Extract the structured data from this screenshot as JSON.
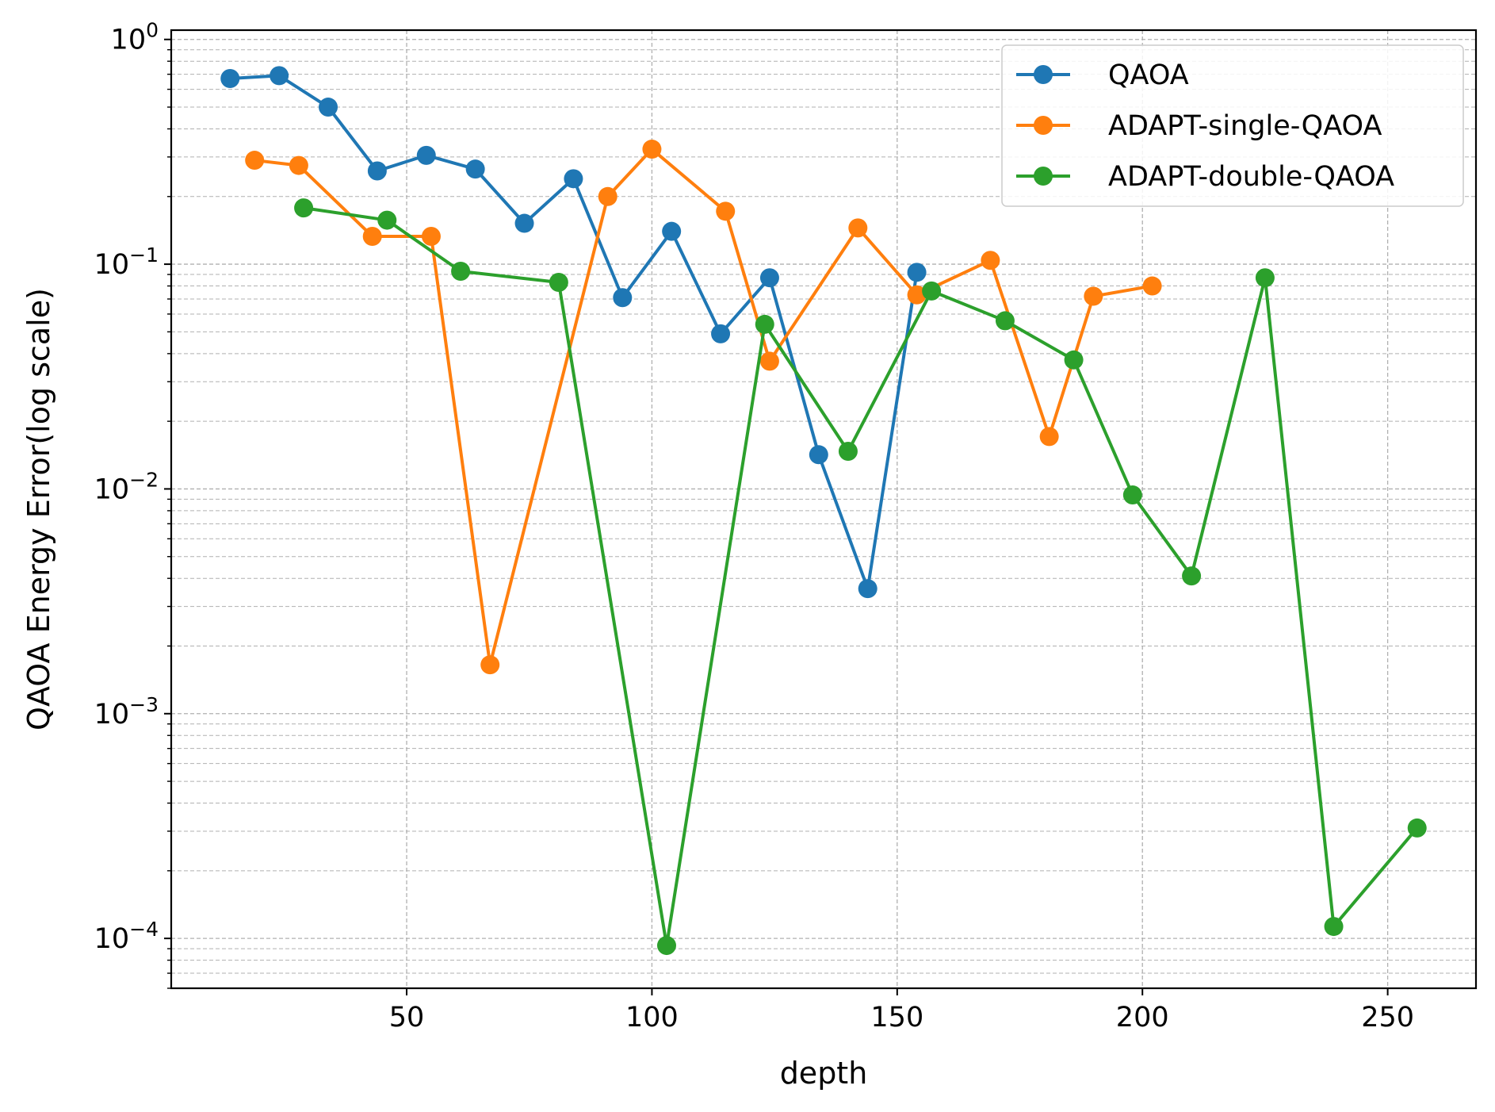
{
  "chart_data": {
    "type": "line",
    "title": "",
    "xlabel": "depth",
    "ylabel": "QAOA Energy Error(log scale)",
    "xlim": [
      2,
      268
    ],
    "ylim": [
      6e-05,
      1.1
    ],
    "yscale": "log",
    "grid": true,
    "legend_position": "top-right",
    "x_ticks": [
      50,
      100,
      150,
      200,
      250
    ],
    "x_tick_labels": [
      "50",
      "100",
      "150",
      "200",
      "250"
    ],
    "y_ticks": [
      0.0001,
      0.001,
      0.01,
      0.1,
      1
    ],
    "y_tick_labels": [
      {
        "base": "10",
        "exp": "−4"
      },
      {
        "base": "10",
        "exp": "−3"
      },
      {
        "base": "10",
        "exp": "−2"
      },
      {
        "base": "10",
        "exp": "−1"
      },
      {
        "base": "10",
        "exp": "0"
      }
    ],
    "series": [
      {
        "name": "QAOA",
        "color": "#1f77b4",
        "x": [
          14,
          24,
          34,
          44,
          54,
          64,
          74,
          84,
          94,
          104,
          114,
          124,
          134,
          144,
          154
        ],
        "y": [
          0.67,
          0.69,
          0.5,
          0.26,
          0.305,
          0.265,
          0.152,
          0.24,
          0.071,
          0.14,
          0.049,
          0.087,
          0.0142,
          0.0036,
          0.092
        ]
      },
      {
        "name": "ADAPT-single-QAOA",
        "color": "#ff7f0e",
        "x": [
          19,
          28,
          43,
          55,
          67,
          91,
          100,
          115,
          124,
          142,
          154,
          169,
          181,
          190,
          202
        ],
        "y": [
          0.29,
          0.275,
          0.133,
          0.133,
          0.00165,
          0.2,
          0.325,
          0.172,
          0.037,
          0.145,
          0.073,
          0.104,
          0.0171,
          0.072,
          0.08
        ]
      },
      {
        "name": "ADAPT-double-QAOA",
        "color": "#2ca02c",
        "x": [
          29,
          46,
          61,
          81,
          103,
          123,
          140,
          157,
          172,
          186,
          198,
          210,
          225,
          239,
          256
        ],
        "y": [
          0.178,
          0.157,
          0.093,
          0.083,
          9.3e-05,
          0.054,
          0.0147,
          0.076,
          0.056,
          0.0375,
          0.0094,
          0.0041,
          0.087,
          0.000113,
          0.00031
        ]
      }
    ]
  }
}
